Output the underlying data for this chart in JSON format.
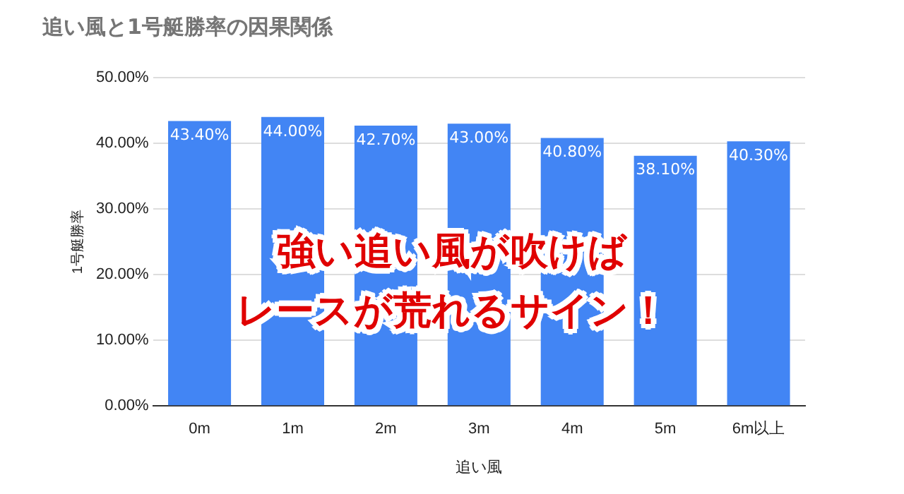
{
  "chart_data": {
    "type": "bar",
    "title": "追い風と1号艇勝率の因果関係",
    "xlabel": "追い風",
    "ylabel": "1号艇勝率",
    "categories": [
      "0m",
      "1m",
      "2m",
      "3m",
      "4m",
      "5m",
      "6m以上"
    ],
    "values": [
      43.4,
      44.0,
      42.7,
      43.0,
      40.8,
      38.1,
      40.3
    ],
    "value_labels": [
      "43.40%",
      "44.00%",
      "42.70%",
      "43.00%",
      "40.80%",
      "38.10%",
      "40.30%"
    ],
    "color": "#4285f4",
    "ylim": [
      0,
      50
    ],
    "yticks": [
      {
        "value": 0,
        "label": "0.00%"
      },
      {
        "value": 10,
        "label": "10.00%"
      },
      {
        "value": 20,
        "label": "20.00%"
      },
      {
        "value": 30,
        "label": "30.00%"
      },
      {
        "value": 40,
        "label": "40.00%"
      },
      {
        "value": 50,
        "label": "50.00%"
      }
    ],
    "grid": "y",
    "legend": false,
    "annotations": [
      "強い追い風が吹けば",
      "レースが荒れるサイン！"
    ]
  }
}
